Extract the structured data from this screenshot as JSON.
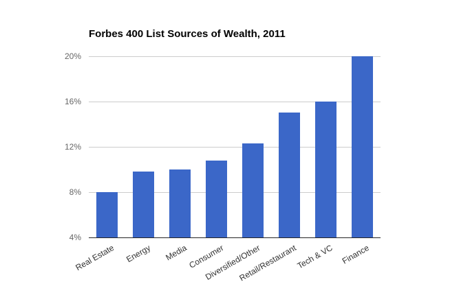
{
  "chart_data": {
    "type": "bar",
    "title": "Forbes 400 List Sources of Wealth, 2011",
    "categories": [
      "Real Estate",
      "Energy",
      "Media",
      "Consumer",
      "Diversified/Other",
      "Retail/Restaurant",
      "Tech & VC",
      "Finance"
    ],
    "values": [
      8,
      9.8,
      10,
      10.8,
      12.3,
      15,
      16,
      20
    ],
    "xlabel": "",
    "ylabel": "",
    "ylim": [
      4,
      20
    ],
    "yticks": [
      4,
      8,
      12,
      16,
      20
    ],
    "ytick_format": "{v}%",
    "grid": true,
    "legend": "none",
    "x_label_rotation_deg": -30,
    "colors": {
      "bar": "#3b67c8",
      "gridline": "#cccccc",
      "axis_line": "#222222",
      "ytick_label": "#666666",
      "xtick_label": "#333333",
      "title": "#000000",
      "background": "#ffffff"
    }
  }
}
